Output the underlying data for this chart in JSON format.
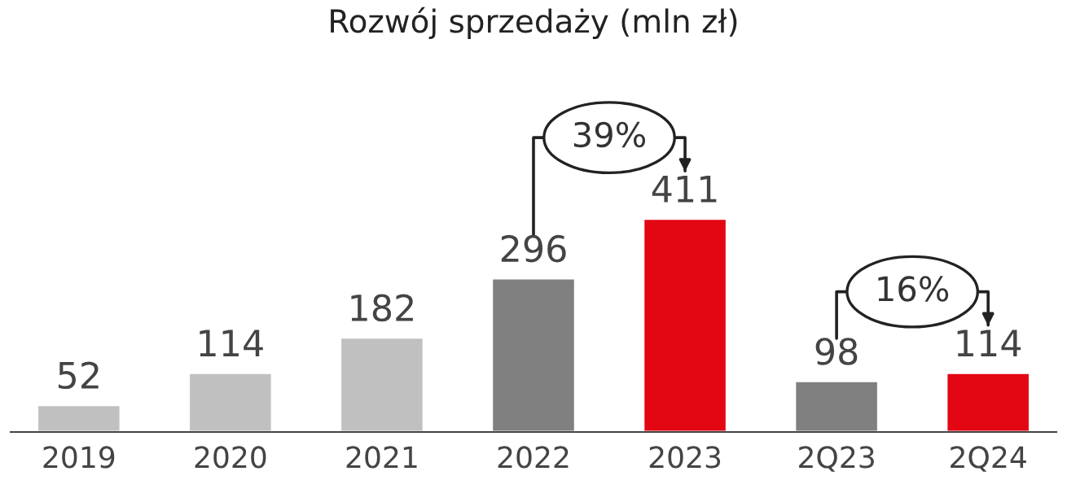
{
  "chart_data": {
    "type": "bar",
    "title": "Rozwój sprzedaży (mln zł)",
    "categories": [
      "2019",
      "2020",
      "2021",
      "2022",
      "2023",
      "2Q23",
      "2Q24"
    ],
    "values": [
      52,
      114,
      182,
      296,
      411,
      98,
      114
    ],
    "colors": [
      "#c0c0c0",
      "#c0c0c0",
      "#c0c0c0",
      "#808080",
      "#e30613",
      "#808080",
      "#e30613"
    ],
    "data_labels": true,
    "annotations": [
      "39%",
      "16%"
    ]
  }
}
